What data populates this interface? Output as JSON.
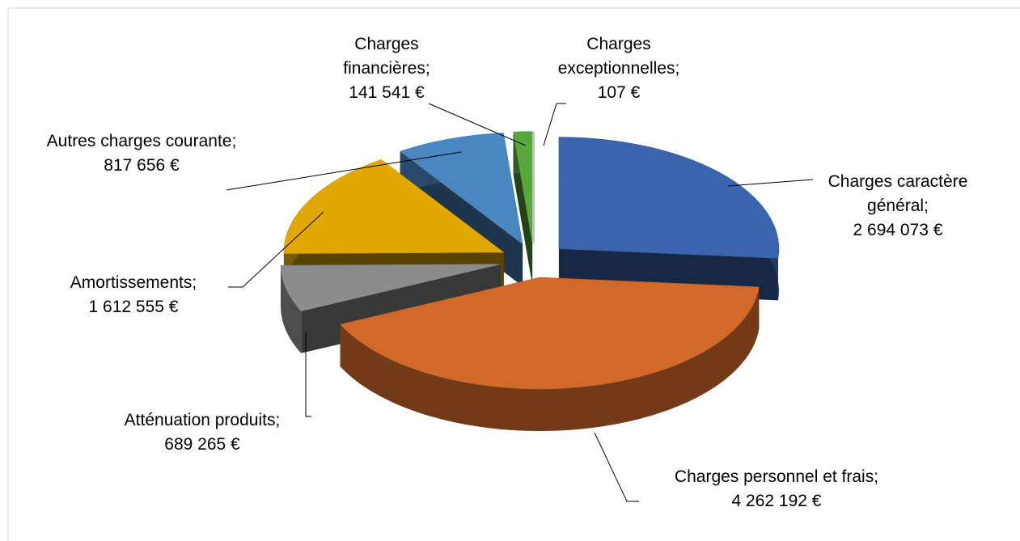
{
  "chart_data": {
    "type": "pie3d",
    "categories": [
      "Charges caractère général",
      "Charges personnel et frais",
      "Atténuation produits",
      "Amortissements",
      "Autres charges courante",
      "Charges financières",
      "Charges exceptionnelles"
    ],
    "values": [
      2694073,
      4262192,
      689265,
      1612555,
      817656,
      141541,
      107
    ],
    "value_labels": [
      "2 694 073 €",
      "4 262 192 €",
      "689 265 €",
      "1 612 555 €",
      "817 656 €",
      "141 541 €",
      "107 €"
    ],
    "label_separator": ";",
    "colors": [
      "#3a64ad",
      "#d0692a",
      "#8c8c8c",
      "#e0a800",
      "#4a86c0",
      "#5aa83c",
      "#7a4fa0"
    ]
  }
}
